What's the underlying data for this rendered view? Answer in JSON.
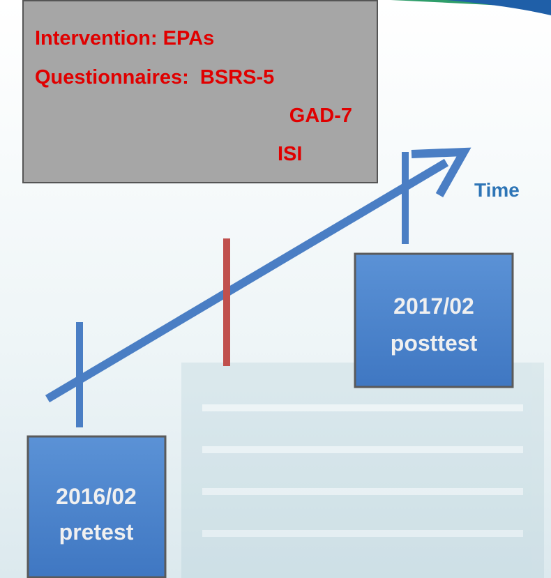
{
  "box": {
    "lines": [
      "Intervention: EPAs",
      "Questionnaires:  BSRS-5",
      "GAD-7",
      "ISI"
    ]
  },
  "axis_label": "Time",
  "pretest": {
    "date": "2016/02",
    "label": "pretest"
  },
  "posttest": {
    "date": "2017/02",
    "label": "posttest"
  }
}
